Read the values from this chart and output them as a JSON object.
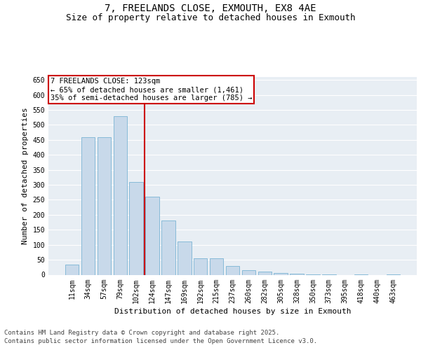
{
  "title": "7, FREELANDS CLOSE, EXMOUTH, EX8 4AE",
  "subtitle": "Size of property relative to detached houses in Exmouth",
  "xlabel": "Distribution of detached houses by size in Exmouth",
  "ylabel": "Number of detached properties",
  "categories": [
    "11sqm",
    "34sqm",
    "57sqm",
    "79sqm",
    "102sqm",
    "124sqm",
    "147sqm",
    "169sqm",
    "192sqm",
    "215sqm",
    "237sqm",
    "260sqm",
    "282sqm",
    "305sqm",
    "328sqm",
    "350sqm",
    "373sqm",
    "395sqm",
    "418sqm",
    "440sqm",
    "463sqm"
  ],
  "values": [
    35,
    460,
    460,
    530,
    310,
    260,
    180,
    110,
    55,
    55,
    30,
    15,
    10,
    5,
    3,
    2,
    1,
    0,
    1,
    0,
    1
  ],
  "bar_color": "#c8d9ea",
  "bar_edge_color": "#7ab4d4",
  "property_line_color": "#cc0000",
  "property_line_x": 4.5,
  "annotation_title": "7 FREELANDS CLOSE: 123sqm",
  "annotation_line1": "← 65% of detached houses are smaller (1,461)",
  "annotation_line2": "35% of semi-detached houses are larger (785) →",
  "annotation_box_color": "#ffffff",
  "annotation_box_edge_color": "#cc0000",
  "ylim": [
    0,
    660
  ],
  "yticks": [
    0,
    50,
    100,
    150,
    200,
    250,
    300,
    350,
    400,
    450,
    500,
    550,
    600,
    650
  ],
  "grid_color": "#ffffff",
  "background_color": "#e8eef4",
  "footer_line1": "Contains HM Land Registry data © Crown copyright and database right 2025.",
  "footer_line2": "Contains public sector information licensed under the Open Government Licence v3.0.",
  "title_fontsize": 10,
  "subtitle_fontsize": 9,
  "ylabel_fontsize": 8,
  "xlabel_fontsize": 8,
  "tick_fontsize": 7,
  "annotation_fontsize": 7.5,
  "footer_fontsize": 6.5
}
